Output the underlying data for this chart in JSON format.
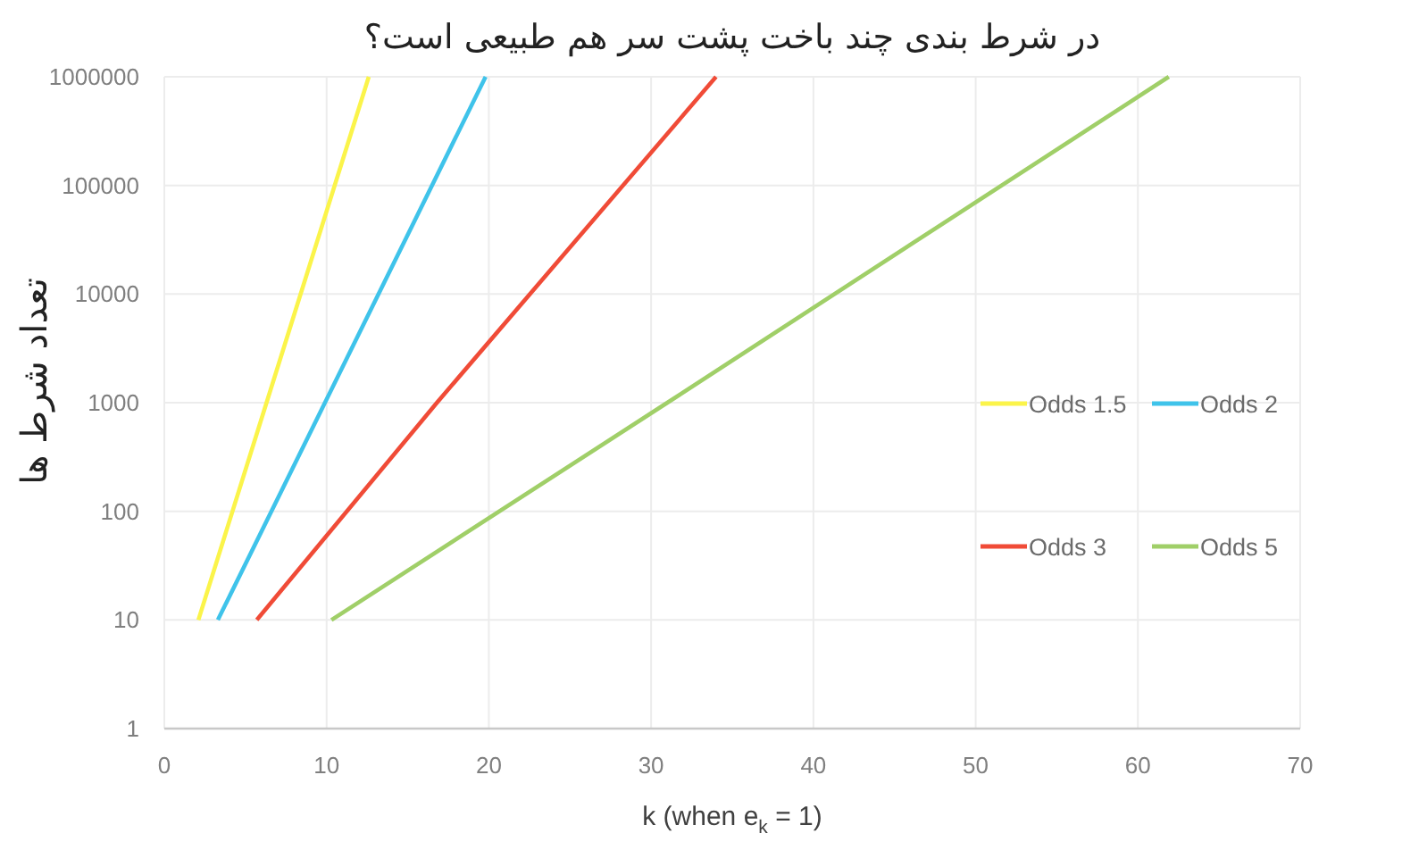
{
  "chart_data": {
    "type": "line",
    "title": "در شرط بندی چند باخت پشت سر هم طبیعی است؟",
    "xlabel": "k (when e$_{k}$ = 1)",
    "ylabel": "تعداد شرط ها",
    "series": [
      {
        "name": "Odds 1.5",
        "color": "#fbf44a",
        "x": [
          2.1,
          6.3,
          12.6
        ],
        "values": [
          10,
          1000,
          1000000
        ]
      },
      {
        "name": "Odds 2",
        "color": "#3fc3ea",
        "x": [
          3.3,
          9.9,
          19.8
        ],
        "values": [
          10,
          1000,
          1000000
        ]
      },
      {
        "name": "Odds 3",
        "color": "#f04b37",
        "x": [
          5.7,
          16.8,
          34.0
        ],
        "values": [
          10,
          1000,
          1000000
        ]
      },
      {
        "name": "Odds 5",
        "color": "#a0cf68",
        "x": [
          10.3,
          31.0,
          61.9
        ],
        "values": [
          10,
          1000,
          1000000
        ]
      }
    ],
    "xlim": [
      0,
      70
    ],
    "xticks": [
      0,
      10,
      20,
      30,
      40,
      50,
      60,
      70
    ],
    "ylim": [
      1,
      1000000
    ],
    "yticks": [
      1,
      10,
      100,
      1000,
      10000,
      100000,
      1000000
    ],
    "log": "y",
    "grid": true,
    "legend": "right"
  }
}
